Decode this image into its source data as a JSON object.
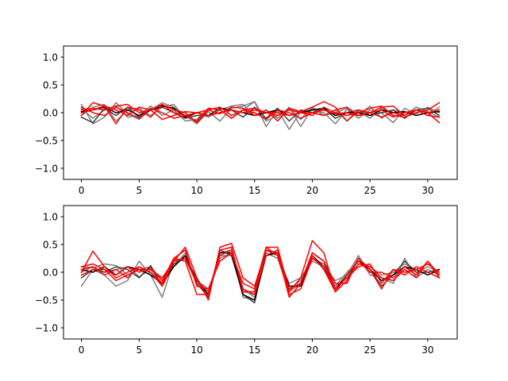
{
  "chart_data": [
    {
      "type": "line",
      "title": "",
      "xlabel": "",
      "ylabel": "",
      "xlim": [
        -1.55,
        32.55
      ],
      "ylim": [
        -1.2,
        1.2
      ],
      "xticks": [
        0,
        5,
        10,
        15,
        20,
        25,
        30
      ],
      "yticks": [
        -1.0,
        -0.5,
        0.0,
        0.5,
        1.0
      ],
      "xtick_labels": [
        "0",
        "5",
        "10",
        "15",
        "20",
        "25",
        "30"
      ],
      "ytick_labels": [
        "−1.0",
        "−0.5",
        "0.0",
        "0.5",
        "1.0"
      ],
      "grid": false,
      "legend": false,
      "x": [
        0,
        1,
        2,
        3,
        4,
        5,
        6,
        7,
        8,
        9,
        10,
        11,
        12,
        13,
        14,
        15,
        16,
        17,
        18,
        19,
        20,
        21,
        22,
        23,
        24,
        25,
        26,
        27,
        28,
        29,
        30,
        31
      ],
      "series": [
        {
          "color": "#808080",
          "values": [
            0.15,
            -0.2,
            -0.08,
            0.18,
            -0.02,
            -0.12,
            0.05,
            0.18,
            0.1,
            -0.05,
            -0.2,
            0.02,
            -0.15,
            0.08,
            0.12,
            0.2,
            -0.25,
            0.05,
            -0.3,
            0.02,
            0.05,
            0.0,
            -0.2,
            0.06,
            -0.1,
            0.05,
            0.0,
            -0.18,
            0.08,
            -0.02,
            0.1,
            0.0
          ]
        },
        {
          "color": "#808080",
          "values": [
            -0.05,
            0.1,
            0.15,
            -0.15,
            0.05,
            0.08,
            -0.05,
            0.1,
            0.15,
            -0.1,
            0.0,
            -0.08,
            0.05,
            0.12,
            0.15,
            -0.05,
            0.05,
            -0.1,
            0.1,
            -0.25,
            0.08,
            -0.05,
            0.05,
            -0.15,
            0.02,
            -0.1,
            0.08,
            0.0,
            -0.05,
            0.1,
            0.02,
            -0.08
          ]
        },
        {
          "color": "#808080",
          "values": [
            0.08,
            -0.1,
            0.05,
            0.12,
            -0.08,
            -0.05,
            0.12,
            -0.05,
            0.05,
            -0.15,
            -0.12,
            0.08,
            0.05,
            -0.1,
            0.05,
            0.2,
            -0.15,
            -0.05,
            0.08,
            -0.12,
            0.1,
            -0.05,
            0.0,
            0.08,
            -0.05,
            0.12,
            -0.1,
            0.05,
            0.0,
            0.05,
            -0.05,
            0.1
          ]
        },
        {
          "color": "#404040",
          "values": [
            -0.08,
            -0.18,
            0.08,
            -0.05,
            0.1,
            -0.08,
            0.05,
            0.1,
            0.0,
            -0.1,
            -0.05,
            -0.05,
            0.0,
            0.05,
            -0.08,
            0.1,
            -0.1,
            0.08,
            -0.15,
            0.05,
            0.0,
            0.08,
            -0.1,
            0.0,
            0.05,
            -0.05,
            0.0,
            0.05,
            -0.1,
            0.05,
            0.08,
            -0.05
          ]
        },
        {
          "color": "#000000",
          "values": [
            0.02,
            0.05,
            0.1,
            0.0,
            0.05,
            -0.05,
            0.05,
            0.12,
            0.08,
            -0.08,
            0.0,
            -0.05,
            0.08,
            0.05,
            0.0,
            -0.05,
            0.0,
            0.05,
            -0.05,
            0.0,
            0.05,
            0.08,
            -0.05,
            0.0,
            0.0,
            -0.05,
            0.05,
            0.0,
            0.02,
            -0.05,
            0.0,
            0.02
          ]
        },
        {
          "color": "#ff0000",
          "values": [
            -0.05,
            0.18,
            0.12,
            -0.2,
            0.1,
            0.05,
            -0.08,
            0.15,
            0.05,
            0.0,
            -0.18,
            0.05,
            -0.02,
            0.1,
            0.08,
            -0.05,
            0.05,
            -0.15,
            0.08,
            0.02,
            0.1,
            0.2,
            0.1,
            -0.15,
            0.05,
            0.0,
            0.1,
            0.12,
            -0.05,
            0.05,
            0.0,
            -0.18
          ]
        },
        {
          "color": "#ff0000",
          "values": [
            0.05,
            0.08,
            0.05,
            0.12,
            0.15,
            0.0,
            0.05,
            -0.12,
            -0.05,
            0.02,
            0.0,
            0.05,
            0.1,
            -0.05,
            0.05,
            0.0,
            -0.12,
            0.05,
            0.0,
            -0.1,
            0.0,
            -0.05,
            0.05,
            0.1,
            -0.05,
            0.0,
            -0.08,
            0.0,
            -0.05,
            0.05,
            0.0,
            0.05
          ]
        },
        {
          "color": "#ff0000",
          "values": [
            0.0,
            0.05,
            0.12,
            0.05,
            -0.05,
            0.1,
            0.05,
            0.15,
            0.0,
            -0.05,
            -0.15,
            0.08,
            0.05,
            -0.1,
            0.05,
            0.08,
            0.0,
            -0.05,
            0.05,
            0.0,
            -0.05,
            0.1,
            0.0,
            -0.05,
            0.0,
            0.08,
            0.12,
            -0.05,
            -0.08,
            0.0,
            0.05,
            0.18
          ]
        },
        {
          "color": "#ff0000",
          "values": [
            0.1,
            0.0,
            -0.05,
            0.1,
            0.0,
            -0.1,
            0.08,
            0.0,
            -0.1,
            -0.05,
            0.0,
            -0.05,
            0.0,
            0.05,
            0.0,
            0.05,
            0.0,
            0.0,
            -0.05,
            0.0,
            0.0,
            0.05,
            -0.02,
            0.0,
            -0.05,
            0.0,
            0.05,
            -0.08,
            0.0,
            0.05,
            -0.05,
            -0.08
          ]
        }
      ]
    },
    {
      "type": "line",
      "title": "",
      "xlabel": "",
      "ylabel": "",
      "xlim": [
        -1.55,
        32.55
      ],
      "ylim": [
        -1.2,
        1.2
      ],
      "xticks": [
        0,
        5,
        10,
        15,
        20,
        25,
        30
      ],
      "yticks": [
        -1.0,
        -0.5,
        0.0,
        0.5,
        1.0
      ],
      "xtick_labels": [
        "0",
        "5",
        "10",
        "15",
        "20",
        "25",
        "30"
      ],
      "ytick_labels": [
        "−1.0",
        "−0.5",
        "0.0",
        "0.5",
        "1.0"
      ],
      "grid": false,
      "legend": false,
      "x": [
        0,
        1,
        2,
        3,
        4,
        5,
        6,
        7,
        8,
        9,
        10,
        11,
        12,
        13,
        14,
        15,
        16,
        17,
        18,
        19,
        20,
        21,
        22,
        23,
        24,
        25,
        26,
        27,
        28,
        29,
        30,
        31
      ],
      "series": [
        {
          "color": "#808080",
          "values": [
            -0.25,
            0.05,
            -0.05,
            -0.25,
            -0.15,
            0.2,
            -0.05,
            -0.45,
            0.2,
            0.25,
            -0.1,
            -0.45,
            0.35,
            0.4,
            -0.45,
            -0.5,
            0.35,
            0.25,
            -0.2,
            -0.1,
            0.2,
            0.1,
            -0.15,
            -0.05,
            0.3,
            -0.05,
            -0.1,
            -0.2,
            0.25,
            -0.1,
            0.05,
            -0.05
          ]
        },
        {
          "color": "#808080",
          "values": [
            0.1,
            0.08,
            0.15,
            0.12,
            -0.05,
            0.05,
            0.1,
            -0.15,
            0.15,
            0.3,
            -0.15,
            -0.3,
            0.25,
            0.35,
            -0.3,
            -0.45,
            0.4,
            0.3,
            -0.3,
            -0.15,
            0.3,
            0.05,
            -0.25,
            0.0,
            0.2,
            0.1,
            -0.05,
            0.0,
            0.15,
            0.05,
            -0.05,
            0.05
          ]
        },
        {
          "color": "#808080",
          "values": [
            0.0,
            0.1,
            0.0,
            0.05,
            0.1,
            -0.08,
            0.05,
            -0.2,
            0.1,
            0.35,
            -0.2,
            -0.4,
            0.3,
            0.3,
            -0.35,
            -0.4,
            0.35,
            0.25,
            -0.35,
            -0.2,
            0.25,
            0.15,
            -0.25,
            -0.1,
            0.25,
            0.0,
            -0.1,
            -0.15,
            0.1,
            0.0,
            0.1,
            0.0
          ]
        },
        {
          "color": "#404040",
          "values": [
            -0.1,
            0.05,
            0.0,
            0.1,
            0.05,
            -0.1,
            0.12,
            -0.25,
            0.15,
            0.25,
            -0.2,
            -0.45,
            0.4,
            0.3,
            -0.4,
            -0.55,
            0.4,
            0.3,
            -0.3,
            -0.2,
            0.35,
            0.2,
            -0.35,
            -0.15,
            0.25,
            0.05,
            -0.25,
            -0.05,
            0.2,
            0.0,
            0.0,
            0.05
          ]
        },
        {
          "color": "#000000",
          "values": [
            0.05,
            0.0,
            0.1,
            -0.05,
            0.1,
            0.05,
            -0.05,
            -0.2,
            0.1,
            0.3,
            -0.15,
            -0.4,
            0.35,
            0.35,
            -0.4,
            -0.5,
            0.3,
            0.35,
            -0.25,
            -0.25,
            0.3,
            0.1,
            -0.3,
            -0.05,
            0.2,
            0.05,
            -0.15,
            -0.05,
            0.1,
            0.05,
            -0.05,
            0.05
          ]
        },
        {
          "color": "#ff0000",
          "values": [
            0.0,
            0.38,
            0.1,
            -0.1,
            0.0,
            0.1,
            0.0,
            -0.2,
            0.25,
            0.2,
            -0.4,
            -0.4,
            0.4,
            0.45,
            -0.35,
            -0.35,
            0.45,
            0.45,
            -0.35,
            -0.1,
            0.57,
            0.35,
            -0.35,
            -0.15,
            0.15,
            0.1,
            -0.1,
            -0.15,
            0.05,
            -0.1,
            0.2,
            -0.05
          ]
        },
        {
          "color": "#ff0000",
          "values": [
            0.1,
            0.15,
            0.05,
            -0.15,
            -0.05,
            0.05,
            0.05,
            -0.1,
            0.2,
            0.45,
            -0.1,
            -0.5,
            0.45,
            0.52,
            -0.1,
            -0.25,
            0.4,
            0.35,
            -0.45,
            -0.2,
            0.35,
            0.2,
            -0.2,
            -0.2,
            0.25,
            0.05,
            -0.3,
            0.05,
            -0.05,
            0.1,
            0.0,
            -0.1
          ]
        },
        {
          "color": "#ff0000",
          "values": [
            -0.05,
            0.05,
            0.05,
            -0.05,
            0.1,
            0.0,
            0.08,
            -0.15,
            0.25,
            0.4,
            -0.25,
            -0.3,
            0.2,
            0.35,
            -0.2,
            -0.3,
            0.45,
            0.3,
            -0.4,
            -0.3,
            0.25,
            0.1,
            -0.3,
            -0.1,
            0.1,
            0.15,
            -0.2,
            0.05,
            0.0,
            0.05,
            0.15,
            0.0
          ]
        },
        {
          "color": "#ff0000",
          "values": [
            0.05,
            0.1,
            -0.05,
            0.05,
            -0.1,
            0.1,
            0.0,
            -0.25,
            0.2,
            0.25,
            -0.15,
            -0.35,
            0.3,
            0.4,
            -0.3,
            -0.4,
            0.3,
            0.4,
            -0.3,
            -0.2,
            0.3,
            0.05,
            -0.35,
            -0.05,
            0.2,
            0.0,
            0.0,
            -0.1,
            0.1,
            -0.05,
            0.2,
            -0.1
          ]
        }
      ]
    }
  ]
}
